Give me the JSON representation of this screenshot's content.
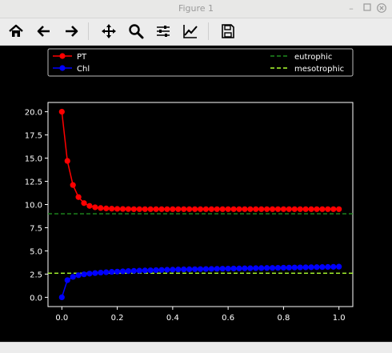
{
  "window": {
    "title": "Figure 1",
    "minimize_icon": "minimize-icon",
    "maximize_icon": "maximize-icon",
    "close_icon": "close-icon"
  },
  "toolbar": {
    "buttons": [
      {
        "name": "home-button",
        "icon": "home-icon"
      },
      {
        "name": "back-button",
        "icon": "back-arrow-icon"
      },
      {
        "name": "forward-button",
        "icon": "forward-arrow-icon"
      },
      {
        "name": "pan-button",
        "icon": "pan-move-icon"
      },
      {
        "name": "zoom-button",
        "icon": "zoom-magnifier-icon"
      },
      {
        "name": "configure-subplots-button",
        "icon": "sliders-icon"
      },
      {
        "name": "edit-axis-button",
        "icon": "line-chart-icon"
      },
      {
        "name": "save-button",
        "icon": "save-disk-icon"
      }
    ]
  },
  "chart_data": {
    "type": "line",
    "xlim": [
      -0.05,
      1.05
    ],
    "ylim": [
      -1.0,
      21.0
    ],
    "x_ticks": [
      "0.0",
      "0.2",
      "0.4",
      "0.6",
      "0.8",
      "1.0"
    ],
    "y_ticks": [
      "0.0",
      "2.5",
      "5.0",
      "7.5",
      "10.0",
      "12.5",
      "15.0",
      "17.5",
      "20.0"
    ],
    "grid": false,
    "legend_placement": "top, spanning full width",
    "background": "#000000",
    "foreground": "#ffffff",
    "series": [
      {
        "name": "PT",
        "color": "#ff0000",
        "marker": "circle",
        "style": "solid",
        "x": [
          0.0,
          0.02,
          0.04,
          0.06,
          0.08,
          0.1,
          0.12,
          0.14,
          0.16,
          0.18,
          0.2,
          0.22,
          0.24,
          0.26,
          0.28,
          0.3,
          0.32,
          0.34,
          0.36,
          0.38,
          0.4,
          0.42,
          0.44,
          0.46,
          0.48,
          0.5,
          0.52,
          0.54,
          0.56,
          0.58,
          0.6,
          0.62,
          0.64,
          0.66,
          0.68,
          0.7,
          0.72,
          0.74,
          0.76,
          0.78,
          0.8,
          0.82,
          0.84,
          0.86,
          0.88,
          0.9,
          0.92,
          0.94,
          0.96,
          0.98,
          1.0
        ],
        "y": [
          20.0,
          14.7,
          12.1,
          10.8,
          10.15,
          9.85,
          9.7,
          9.62,
          9.58,
          9.55,
          9.53,
          9.52,
          9.51,
          9.5,
          9.5,
          9.5,
          9.5,
          9.5,
          9.5,
          9.5,
          9.5,
          9.5,
          9.5,
          9.5,
          9.5,
          9.5,
          9.5,
          9.5,
          9.5,
          9.5,
          9.5,
          9.5,
          9.5,
          9.5,
          9.5,
          9.5,
          9.5,
          9.5,
          9.5,
          9.5,
          9.5,
          9.5,
          9.5,
          9.5,
          9.5,
          9.5,
          9.5,
          9.5,
          9.5,
          9.5,
          9.5
        ]
      },
      {
        "name": "Chl",
        "color": "#0000ff",
        "marker": "circle",
        "style": "solid",
        "x": [
          0.0,
          0.02,
          0.04,
          0.06,
          0.08,
          0.1,
          0.12,
          0.14,
          0.16,
          0.18,
          0.2,
          0.22,
          0.24,
          0.26,
          0.28,
          0.3,
          0.32,
          0.34,
          0.36,
          0.38,
          0.4,
          0.42,
          0.44,
          0.46,
          0.48,
          0.5,
          0.52,
          0.54,
          0.56,
          0.58,
          0.6,
          0.62,
          0.64,
          0.66,
          0.68,
          0.7,
          0.72,
          0.74,
          0.76,
          0.78,
          0.8,
          0.82,
          0.84,
          0.86,
          0.88,
          0.9,
          0.92,
          0.94,
          0.96,
          0.98,
          1.0
        ],
        "y": [
          0.0,
          1.85,
          2.2,
          2.38,
          2.48,
          2.55,
          2.61,
          2.66,
          2.7,
          2.74,
          2.77,
          2.8,
          2.83,
          2.85,
          2.87,
          2.89,
          2.91,
          2.93,
          2.95,
          2.97,
          2.98,
          3.0,
          3.01,
          3.02,
          3.03,
          3.04,
          3.05,
          3.06,
          3.07,
          3.08,
          3.09,
          3.1,
          3.11,
          3.12,
          3.13,
          3.14,
          3.15,
          3.16,
          3.17,
          3.18,
          3.19,
          3.2,
          3.21,
          3.22,
          3.23,
          3.24,
          3.25,
          3.26,
          3.27,
          3.28,
          3.3
        ]
      },
      {
        "name": "eutrophic",
        "color": "#1f8c1f",
        "style": "dashed",
        "y": 9.0
      },
      {
        "name": "mesotrophic",
        "color": "#adff2f",
        "style": "dashed",
        "y": 2.6
      }
    ]
  }
}
